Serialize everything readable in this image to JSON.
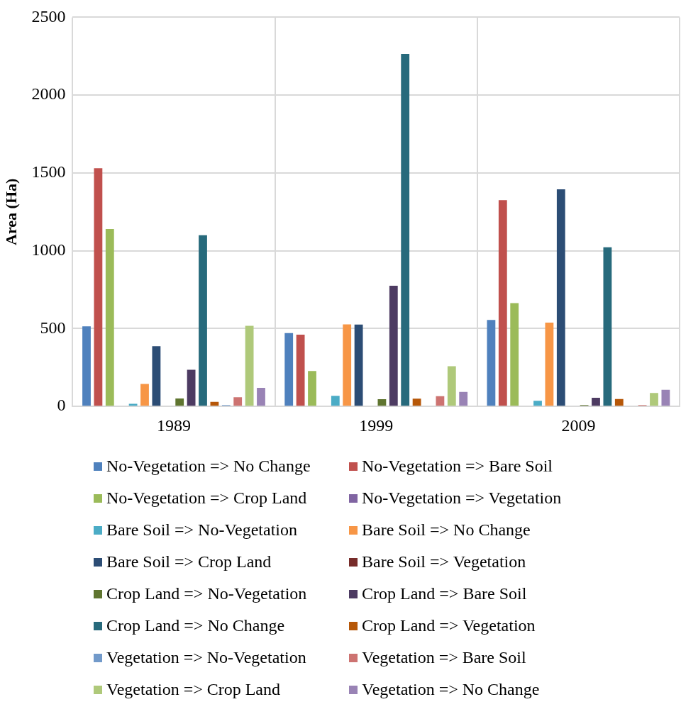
{
  "chart_data": {
    "type": "bar",
    "ylabel": "Area (Ha)",
    "categories": [
      "1989",
      "1999",
      "2009"
    ],
    "ylim": [
      0,
      2500
    ],
    "yticks": [
      0,
      500,
      1000,
      1500,
      2000,
      2500
    ],
    "grid": true,
    "legend": "bottom",
    "series": [
      {
        "name": "No-Vegetation => No Change",
        "color": "#4f81bd",
        "values": [
          514,
          471,
          556
        ]
      },
      {
        "name": "No-Vegetation => Bare Soil",
        "color": "#c0504d",
        "values": [
          1530,
          461,
          1325
        ]
      },
      {
        "name": "No-Vegetation => Crop Land",
        "color": "#9bbb59",
        "values": [
          1140,
          228,
          664
        ]
      },
      {
        "name": "No-Vegetation => Vegetation",
        "color": "#8064a2",
        "values": [
          0,
          0,
          0
        ]
      },
      {
        "name": "Bare Soil => No-Vegetation",
        "color": "#4bacc6",
        "values": [
          17,
          68,
          36
        ]
      },
      {
        "name": "Bare Soil => No Change",
        "color": "#f79646",
        "values": [
          144,
          527,
          538
        ]
      },
      {
        "name": "Bare Soil => Crop Land",
        "color": "#2c4d75",
        "values": [
          387,
          526,
          1395
        ]
      },
      {
        "name": "Bare Soil => Vegetation",
        "color": "#772c2a",
        "values": [
          0,
          0,
          0
        ]
      },
      {
        "name": "Crop Land => No-Vegetation",
        "color": "#5f7530",
        "values": [
          51,
          47,
          9
        ]
      },
      {
        "name": "Crop Land => Bare Soil",
        "color": "#4d3b62",
        "values": [
          236,
          775,
          56
        ]
      },
      {
        "name": "Crop Land => No Change",
        "color": "#276a7c",
        "values": [
          1100,
          2265,
          1022
        ]
      },
      {
        "name": "Crop Land => Vegetation",
        "color": "#b65708",
        "values": [
          29,
          50,
          48
        ]
      },
      {
        "name": "Vegetation => No-Vegetation",
        "color": "#729aca",
        "values": [
          9,
          0,
          0
        ]
      },
      {
        "name": "Vegetation => Bare Soil",
        "color": "#cd7371",
        "values": [
          59,
          66,
          9
        ]
      },
      {
        "name": "Vegetation => Crop Land",
        "color": "#afc97a",
        "values": [
          518,
          258,
          86
        ]
      },
      {
        "name": "Vegetation => No Change",
        "color": "#9983b5",
        "values": [
          119,
          93,
          107
        ]
      }
    ]
  }
}
